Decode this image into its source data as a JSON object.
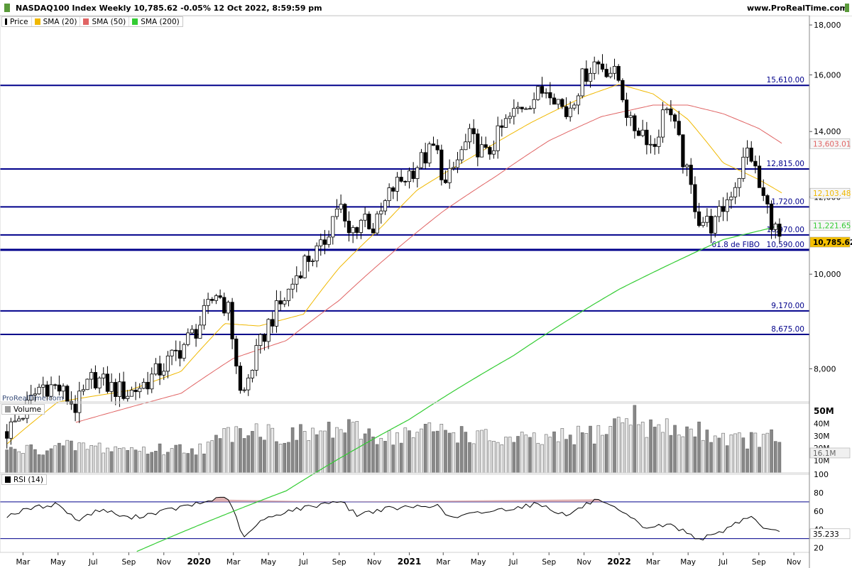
{
  "header": {
    "title": "NASDAQ100 Index Weekly 10,785.62 -0.05% 12 Oct 2022, 8:59:59 pm",
    "site": "www.ProRealTime.com",
    "watermark": "ProRealTime.com"
  },
  "legend_price": [
    {
      "label": "Price",
      "color": "#000000"
    },
    {
      "label": "SMA (20)",
      "color": "#f0b800"
    },
    {
      "label": "SMA (50)",
      "color": "#e06464"
    },
    {
      "label": "SMA (200)",
      "color": "#33cc33"
    }
  ],
  "legend_volume": {
    "label": "Volume",
    "color": "#999999"
  },
  "legend_rsi": {
    "label": "RSI (14)",
    "color": "#000000"
  },
  "colors": {
    "level_line": "#00008b",
    "price_badge": "#f5c000",
    "sma20": "#f0b800",
    "sma50": "#e06464",
    "sma200": "#33cc33"
  },
  "chart_data": [
    {
      "type": "candlestick",
      "title": "NASDAQ100 Index Weekly",
      "scale": "log",
      "ylim": [
        7400,
        18400
      ],
      "yticks": [
        {
          "value": 8000,
          "label": "8,000"
        },
        {
          "value": 10000,
          "label": "10,000"
        },
        {
          "value": 12000,
          "label": "12,000"
        },
        {
          "value": 14000,
          "label": "14,000"
        },
        {
          "value": 16000,
          "label": "16,000"
        },
        {
          "value": 18000,
          "label": "18,000"
        }
      ],
      "x_ticks": [
        {
          "date": "2019-03-01",
          "label": "Mar",
          "bold": false
        },
        {
          "date": "2019-05-01",
          "label": "May",
          "bold": false
        },
        {
          "date": "2019-07-01",
          "label": "Jul",
          "bold": false
        },
        {
          "date": "2019-09-01",
          "label": "Sep",
          "bold": false
        },
        {
          "date": "2019-11-01",
          "label": "Nov",
          "bold": false
        },
        {
          "date": "2020-01-01",
          "label": "2020",
          "bold": true
        },
        {
          "date": "2020-03-01",
          "label": "Mar",
          "bold": false
        },
        {
          "date": "2020-05-01",
          "label": "May",
          "bold": false
        },
        {
          "date": "2020-07-01",
          "label": "Jul",
          "bold": false
        },
        {
          "date": "2020-09-01",
          "label": "Sep",
          "bold": false
        },
        {
          "date": "2020-11-01",
          "label": "Nov",
          "bold": false
        },
        {
          "date": "2021-01-01",
          "label": "2021",
          "bold": true
        },
        {
          "date": "2021-03-01",
          "label": "Mar",
          "bold": false
        },
        {
          "date": "2021-05-01",
          "label": "May",
          "bold": false
        },
        {
          "date": "2021-07-01",
          "label": "Jul",
          "bold": false
        },
        {
          "date": "2021-09-01",
          "label": "Sep",
          "bold": false
        },
        {
          "date": "2021-11-01",
          "label": "Nov",
          "bold": false
        },
        {
          "date": "2022-01-01",
          "label": "2022",
          "bold": true
        },
        {
          "date": "2022-03-01",
          "label": "Mar",
          "bold": false
        },
        {
          "date": "2022-05-01",
          "label": "May",
          "bold": false
        },
        {
          "date": "2022-07-01",
          "label": "Jul",
          "bold": false
        },
        {
          "date": "2022-09-01",
          "label": "Sep",
          "bold": false
        },
        {
          "date": "2022-11-01",
          "label": "Nov",
          "bold": false
        }
      ],
      "levels": [
        {
          "value": 15610,
          "label": "15,610.00"
        },
        {
          "value": 12815,
          "label": "12,815.00"
        },
        {
          "value": 11720,
          "label": "11,720.00"
        },
        {
          "value": 10970,
          "label": "10,970.00"
        },
        {
          "value": 10590,
          "label": "10,590.00",
          "note": "61.8 de FIBO"
        },
        {
          "value": 9170,
          "label": "9,170.00"
        },
        {
          "value": 8675,
          "label": "8,675.00"
        }
      ],
      "value_badges": [
        {
          "value": 13603.01,
          "label": "13,603.01",
          "color": "#e06464"
        },
        {
          "value": 12103.48,
          "label": "12,103.48",
          "color": "#f0b800"
        },
        {
          "value": 11221.65,
          "label": "11,221.65",
          "color": "#33cc33"
        },
        {
          "value": 10785.62,
          "label": "10,785.62",
          "color": "#f5c000"
        }
      ],
      "close_points": [
        [
          "2019-02-01",
          6900
        ],
        [
          "2019-03-01",
          7200
        ],
        [
          "2019-04-01",
          7700
        ],
        [
          "2019-05-01",
          7650
        ],
        [
          "2019-06-01",
          7300
        ],
        [
          "2019-07-01",
          7850
        ],
        [
          "2019-08-01",
          7650
        ],
        [
          "2019-09-01",
          7550
        ],
        [
          "2019-10-01",
          7750
        ],
        [
          "2019-11-01",
          8050
        ],
        [
          "2019-12-01",
          8400
        ],
        [
          "2020-01-01",
          8850
        ],
        [
          "2020-02-01",
          9600
        ],
        [
          "2020-02-22",
          9150
        ],
        [
          "2020-03-15",
          7400
        ],
        [
          "2020-04-01",
          8000
        ],
        [
          "2020-05-01",
          8900
        ],
        [
          "2020-06-01",
          9500
        ],
        [
          "2020-07-01",
          10300
        ],
        [
          "2020-08-01",
          10600
        ],
        [
          "2020-09-01",
          11900
        ],
        [
          "2020-09-15",
          10900
        ],
        [
          "2020-10-15",
          11500
        ],
        [
          "2020-11-01",
          11100
        ],
        [
          "2020-12-01",
          12200
        ],
        [
          "2021-01-01",
          12700
        ],
        [
          "2021-02-15",
          13500
        ],
        [
          "2021-03-05",
          12300
        ],
        [
          "2021-04-15",
          13800
        ],
        [
          "2021-05-15",
          13200
        ],
        [
          "2021-06-15",
          14200
        ],
        [
          "2021-07-15",
          14900
        ],
        [
          "2021-08-15",
          15300
        ],
        [
          "2021-09-01",
          15600
        ],
        [
          "2021-10-01",
          14600
        ],
        [
          "2021-11-01",
          16000
        ],
        [
          "2021-11-20",
          16500
        ],
        [
          "2021-12-15",
          16200
        ],
        [
          "2022-01-01",
          15800
        ],
        [
          "2022-01-20",
          14200
        ],
        [
          "2022-02-15",
          14000
        ],
        [
          "2022-03-01",
          13400
        ],
        [
          "2022-03-25",
          15000
        ],
        [
          "2022-04-15",
          13600
        ],
        [
          "2022-05-01",
          12500
        ],
        [
          "2022-05-20",
          11400
        ],
        [
          "2022-06-15",
          11200
        ],
        [
          "2022-07-01",
          11700
        ],
        [
          "2022-07-25",
          12500
        ],
        [
          "2022-08-15",
          13500
        ],
        [
          "2022-09-01",
          12300
        ],
        [
          "2022-09-20",
          11500
        ],
        [
          "2022-10-05",
          10900
        ],
        [
          "2022-10-12",
          10785.62
        ]
      ],
      "sma20_points": [
        [
          "2019-02-01",
          6700
        ],
        [
          "2019-05-01",
          7400
        ],
        [
          "2019-09-01",
          7600
        ],
        [
          "2019-12-01",
          7950
        ],
        [
          "2020-02-15",
          8900
        ],
        [
          "2020-04-15",
          8850
        ],
        [
          "2020-07-01",
          9100
        ],
        [
          "2020-09-01",
          10150
        ],
        [
          "2020-11-15",
          11200
        ],
        [
          "2021-01-15",
          12200
        ],
        [
          "2021-05-01",
          13300
        ],
        [
          "2021-08-01",
          14300
        ],
        [
          "2021-11-01",
          15200
        ],
        [
          "2022-01-01",
          15650
        ],
        [
          "2022-03-01",
          15300
        ],
        [
          "2022-05-01",
          14400
        ],
        [
          "2022-07-01",
          13000
        ],
        [
          "2022-09-01",
          12500
        ],
        [
          "2022-10-12",
          12103.48
        ]
      ],
      "sma50_points": [
        [
          "2019-06-01",
          7050
        ],
        [
          "2019-12-01",
          7550
        ],
        [
          "2020-03-01",
          8200
        ],
        [
          "2020-06-01",
          8550
        ],
        [
          "2020-09-01",
          9400
        ],
        [
          "2020-12-01",
          10500
        ],
        [
          "2021-03-01",
          11600
        ],
        [
          "2021-06-01",
          12600
        ],
        [
          "2021-09-01",
          13700
        ],
        [
          "2021-12-01",
          14500
        ],
        [
          "2022-03-01",
          14900
        ],
        [
          "2022-05-01",
          14900
        ],
        [
          "2022-07-01",
          14600
        ],
        [
          "2022-09-01",
          14100
        ],
        [
          "2022-10-12",
          13603.01
        ]
      ],
      "sma200_points": [
        [
          "2019-09-15",
          5200
        ],
        [
          "2020-06-01",
          6000
        ],
        [
          "2021-01-01",
          7100
        ],
        [
          "2021-07-01",
          8250
        ],
        [
          "2022-01-01",
          9650
        ],
        [
          "2022-07-01",
          10850
        ],
        [
          "2022-10-12",
          11221.65
        ]
      ]
    },
    {
      "type": "bar",
      "title": "Volume",
      "yticks": [
        {
          "value": 10,
          "label": "10M"
        },
        {
          "value": 20,
          "label": "20M"
        },
        {
          "value": 30,
          "label": "30M"
        },
        {
          "value": 40,
          "label": "40M"
        },
        {
          "value": 50,
          "label": "50M"
        }
      ],
      "ylim": [
        0,
        54
      ],
      "last_value": {
        "value": 16.1,
        "label": "16.1M"
      },
      "profile_points": [
        [
          "2019-02-01",
          18
        ],
        [
          "2019-06-01",
          22
        ],
        [
          "2019-10-01",
          19
        ],
        [
          "2020-01-15",
          21
        ],
        [
          "2020-03-15",
          40
        ],
        [
          "2020-06-01",
          30
        ],
        [
          "2020-09-01",
          36
        ],
        [
          "2020-12-01",
          30
        ],
        [
          "2021-03-01",
          36
        ],
        [
          "2021-06-01",
          27
        ],
        [
          "2021-09-01",
          27
        ],
        [
          "2021-12-01",
          34
        ],
        [
          "2022-01-20",
          48
        ],
        [
          "2022-03-01",
          37
        ],
        [
          "2022-06-01",
          34
        ],
        [
          "2022-08-01",
          27
        ],
        [
          "2022-10-12",
          29
        ]
      ]
    },
    {
      "type": "line",
      "title": "RSI (14)",
      "ylim": [
        15,
        100
      ],
      "yticks": [
        {
          "value": 20,
          "label": "20"
        },
        {
          "value": 40,
          "label": "40"
        },
        {
          "value": 60,
          "label": "60"
        },
        {
          "value": 80,
          "label": "80"
        },
        {
          "value": 100,
          "label": "100"
        }
      ],
      "bands": [
        70,
        30
      ],
      "last_value": {
        "value": 35.233,
        "label": "35.233"
      },
      "points": [
        [
          "2019-02-01",
          55
        ],
        [
          "2019-03-15",
          63
        ],
        [
          "2019-05-01",
          68
        ],
        [
          "2019-06-01",
          50
        ],
        [
          "2019-07-15",
          62
        ],
        [
          "2019-09-01",
          52
        ],
        [
          "2019-10-15",
          58
        ],
        [
          "2019-12-01",
          64
        ],
        [
          "2020-01-15",
          70
        ],
        [
          "2020-02-15",
          77
        ],
        [
          "2020-03-01",
          60
        ],
        [
          "2020-03-20",
          30
        ],
        [
          "2020-04-15",
          48
        ],
        [
          "2020-06-01",
          60
        ],
        [
          "2020-07-15",
          65
        ],
        [
          "2020-09-01",
          72
        ],
        [
          "2020-10-01",
          56
        ],
        [
          "2020-11-15",
          62
        ],
        [
          "2021-01-01",
          64
        ],
        [
          "2021-02-15",
          67
        ],
        [
          "2021-03-15",
          52
        ],
        [
          "2021-05-01",
          58
        ],
        [
          "2021-06-15",
          62
        ],
        [
          "2021-08-15",
          68
        ],
        [
          "2021-10-01",
          55
        ],
        [
          "2021-11-20",
          72
        ],
        [
          "2022-01-01",
          60
        ],
        [
          "2022-02-15",
          42
        ],
        [
          "2022-04-01",
          45
        ],
        [
          "2022-05-20",
          30
        ],
        [
          "2022-06-15",
          33
        ],
        [
          "2022-08-15",
          55
        ],
        [
          "2022-09-15",
          40
        ],
        [
          "2022-10-12",
          35.233
        ]
      ]
    }
  ]
}
